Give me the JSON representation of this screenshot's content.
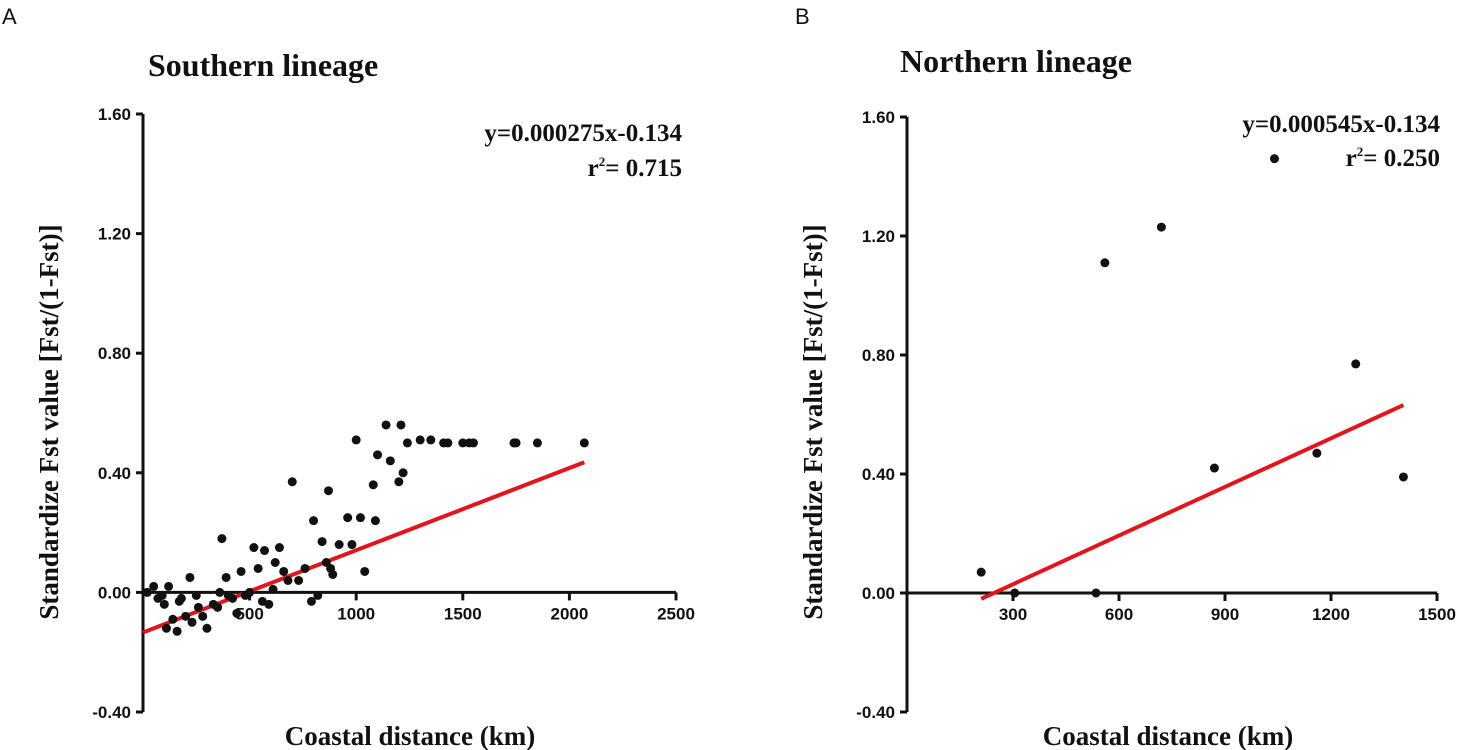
{
  "panels": [
    {
      "letter": "A",
      "equation": "y=0.000275x-0.134",
      "r2_prefix": "r",
      "r2_sup": "2",
      "r2_suffix": "= 0.715",
      "fit_color": "#e3151b"
    },
    {
      "letter": "B",
      "equation": "y=0.000545x-0.134",
      "r2_prefix": "r",
      "r2_sup": "2",
      "r2_suffix": "= 0.250",
      "fit_color": "#e3151b"
    }
  ],
  "chart_data": [
    {
      "type": "scatter",
      "title": "Southern lineage",
      "xlabel": "Coastal distance (km)",
      "ylabel": "Standardize Fst value [Fst/(1-Fst)]",
      "xlim": [
        0,
        2500
      ],
      "ylim": [
        -0.4,
        1.6
      ],
      "xticks": [
        500,
        1000,
        1500,
        2000,
        2500
      ],
      "yticks": [
        -0.4,
        0.0,
        0.4,
        0.8,
        1.2,
        1.6
      ],
      "ytick_labels": [
        "-0.40",
        "0.00",
        "0.40",
        "0.80",
        "1.20",
        "1.60"
      ],
      "x": [
        20,
        50,
        70,
        90,
        100,
        110,
        120,
        140,
        160,
        170,
        180,
        200,
        220,
        230,
        250,
        260,
        280,
        300,
        330,
        350,
        360,
        370,
        390,
        400,
        420,
        440,
        460,
        480,
        500,
        520,
        540,
        560,
        570,
        590,
        610,
        620,
        640,
        660,
        680,
        700,
        730,
        760,
        790,
        800,
        820,
        840,
        860,
        870,
        880,
        890,
        920,
        960,
        980,
        1000,
        1020,
        1040,
        1080,
        1090,
        1100,
        1140,
        1160,
        1200,
        1210,
        1220,
        1240,
        1300,
        1350,
        1410,
        1430,
        1500,
        1530,
        1550,
        1740,
        1750,
        1850,
        2070
      ],
      "y": [
        0.0,
        0.02,
        -0.02,
        -0.01,
        -0.04,
        -0.12,
        0.02,
        -0.09,
        -0.13,
        -0.03,
        -0.02,
        -0.08,
        0.05,
        -0.1,
        -0.01,
        -0.05,
        -0.08,
        -0.12,
        -0.04,
        -0.05,
        0.0,
        0.18,
        0.05,
        -0.01,
        -0.02,
        -0.07,
        0.07,
        -0.01,
        0.0,
        0.15,
        0.08,
        -0.03,
        0.14,
        -0.04,
        0.01,
        0.1,
        0.15,
        0.07,
        0.04,
        0.37,
        0.04,
        0.08,
        -0.03,
        0.24,
        -0.01,
        0.17,
        0.1,
        0.34,
        0.08,
        0.06,
        0.16,
        0.25,
        0.16,
        0.51,
        0.25,
        0.07,
        0.36,
        0.24,
        0.46,
        0.56,
        0.44,
        0.37,
        0.56,
        0.4,
        0.5,
        0.51,
        0.51,
        0.5,
        0.5,
        0.5,
        0.5,
        0.5,
        0.5,
        0.5,
        0.5,
        0.5
      ],
      "fit": {
        "slope": 0.000275,
        "intercept": -0.134,
        "x_range": [
          0,
          2070
        ]
      }
    },
    {
      "type": "scatter",
      "title": "Northern lineage",
      "xlabel": "Coastal distance (km)",
      "ylabel": "Standardize Fst value [Fst/(1-Fst)]",
      "xlim": [
        0,
        1500
      ],
      "ylim": [
        -0.4,
        1.6
      ],
      "xticks": [
        300,
        600,
        900,
        1200,
        1500
      ],
      "yticks": [
        -0.4,
        0.0,
        0.4,
        0.8,
        1.2,
        1.6
      ],
      "ytick_labels": [
        "-0.40",
        "0.00",
        "0.40",
        "0.80",
        "1.20",
        "1.60"
      ],
      "x": [
        210,
        305,
        535,
        560,
        720,
        870,
        1040,
        1160,
        1270,
        1405
      ],
      "y": [
        0.07,
        0.0,
        0.0,
        1.11,
        1.23,
        0.42,
        1.46,
        0.47,
        0.77,
        0.39
      ],
      "fit": {
        "slope": 0.000545,
        "intercept": -0.134,
        "x_range": [
          210,
          1405
        ]
      }
    }
  ]
}
